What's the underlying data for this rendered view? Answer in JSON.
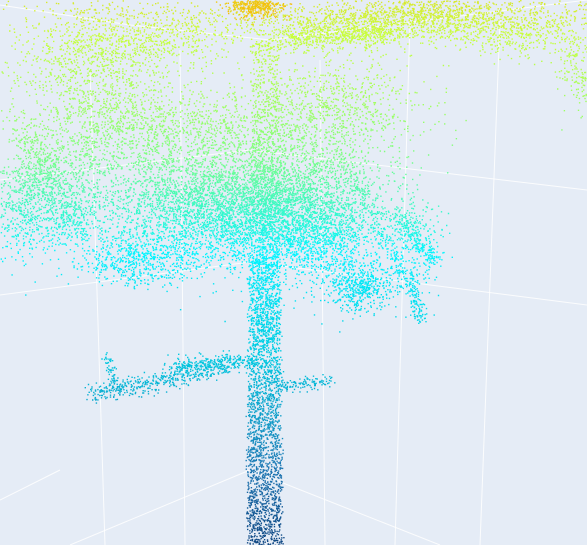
{
  "viewer": {
    "background_color": "#e5ecf6",
    "grid_color": "#ffffff",
    "grid_visible": true,
    "axes_labels_visible": false
  },
  "chart_data": {
    "type": "scatter3d",
    "title": "",
    "subject": "point-cloud",
    "colorscale": "jet",
    "colorscale_stops": [
      "#08306b",
      "#1f78b4",
      "#00c8e0",
      "#00f5ff",
      "#7fff7f",
      "#c8ff3c",
      "#ffb000"
    ],
    "color_by": "height",
    "marker_style": "small-dots",
    "regions": [
      {
        "name": "trunk",
        "color_level": 0.15
      },
      {
        "name": "lower-branch",
        "color_level": 0.35
      },
      {
        "name": "mid-canopy",
        "color_level": 0.5
      },
      {
        "name": "upper-canopy",
        "color_level": 0.7
      },
      {
        "name": "crown-top",
        "color_level": 0.95
      }
    ]
  }
}
